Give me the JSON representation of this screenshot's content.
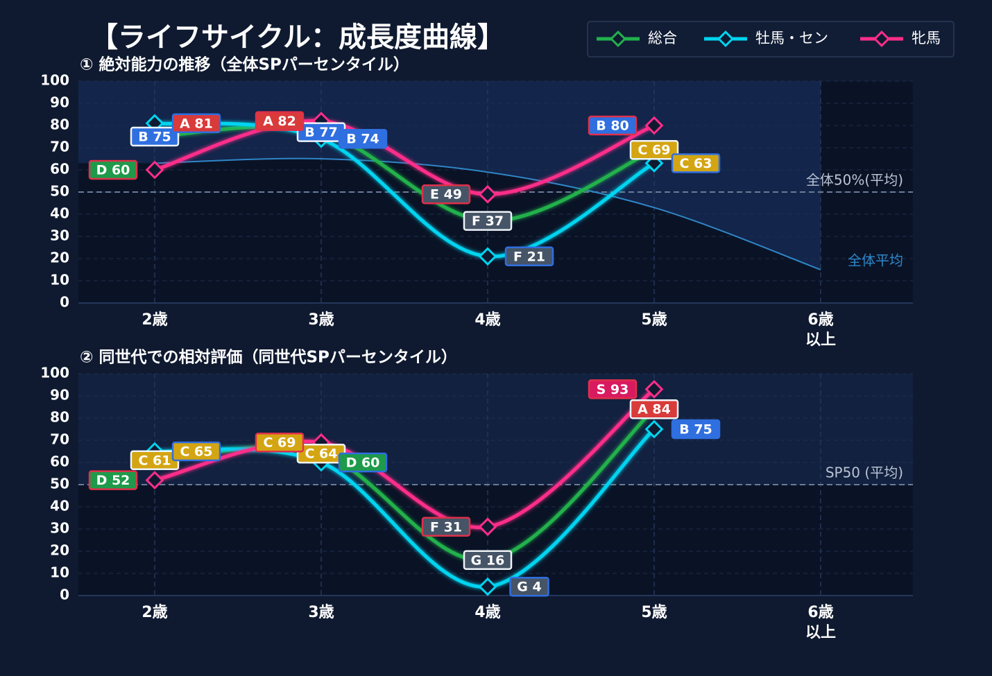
{
  "title": "【ライフサイクル：成長度曲線】",
  "chart_data": [
    {
      "type": "line",
      "title": "① 絶対能力の推移（全体SPパーセンタイル）",
      "categories": [
        "2歳",
        "3歳",
        "4歳",
        "5歳",
        "6歳\n以上"
      ],
      "ylim": [
        0,
        100
      ],
      "yticks": [
        0,
        10,
        20,
        30,
        40,
        50,
        60,
        70,
        80,
        90,
        100
      ],
      "grid": true,
      "series": [
        {
          "name": "総合",
          "color": "#22b14c",
          "values": [
            75,
            77,
            37,
            69,
            null
          ],
          "value_labels": [
            "B 75",
            "B 77",
            "F 37",
            "C 69",
            null
          ]
        },
        {
          "name": "牡馬・セン",
          "color": "#00d4f0",
          "values": [
            81,
            74,
            21,
            63,
            null
          ],
          "value_labels": [
            "A 81",
            "B 74",
            "F 21",
            "C 63",
            null
          ]
        },
        {
          "name": "牝馬",
          "color": "#ff2d8a",
          "values": [
            60,
            82,
            49,
            80,
            null
          ],
          "value_labels": [
            "D 60",
            "A 82",
            "E 49",
            "B 80",
            null
          ]
        }
      ],
      "baseline": {
        "name": "全体平均",
        "color": "#2f86c8",
        "values": [
          63,
          65,
          59,
          43,
          15
        ]
      },
      "reference_line": {
        "value": 50,
        "label": "全体50%(平均)"
      }
    },
    {
      "type": "line",
      "title": "② 同世代での相対評価（同世代SPパーセンタイル）",
      "categories": [
        "2歳",
        "3歳",
        "4歳",
        "5歳",
        "6歳\n以上"
      ],
      "ylim": [
        0,
        100
      ],
      "yticks": [
        0,
        10,
        20,
        30,
        40,
        50,
        60,
        70,
        80,
        90,
        100
      ],
      "grid": true,
      "series": [
        {
          "name": "総合",
          "color": "#22b14c",
          "values": [
            61,
            64,
            16,
            84,
            null
          ],
          "value_labels": [
            "C 61",
            "C 64",
            "G 16",
            "A 84",
            null
          ]
        },
        {
          "name": "牡馬・セン",
          "color": "#00d4f0",
          "values": [
            65,
            60,
            4,
            75,
            null
          ],
          "value_labels": [
            "C 65",
            "D 60",
            "G 4",
            "B 75",
            null
          ]
        },
        {
          "name": "牝馬",
          "color": "#ff2d8a",
          "values": [
            52,
            69,
            31,
            93,
            null
          ],
          "value_labels": [
            "D 52",
            "C 69",
            "F 31",
            "S 93",
            null
          ]
        }
      ],
      "reference_line": {
        "value": 50,
        "label": "SP50 (平均)"
      }
    }
  ]
}
